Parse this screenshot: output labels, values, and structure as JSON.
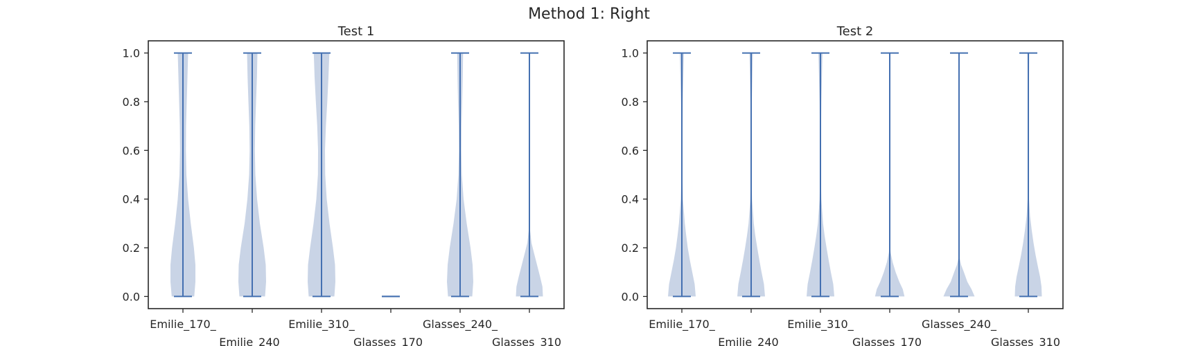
{
  "figure": {
    "title": "Method 1: Right"
  },
  "colors": {
    "violin_fill": "#c9d4e6",
    "violin_edge": "#4470b1"
  },
  "chart_data": [
    {
      "type": "violin",
      "title": "Test 1",
      "xlabel": "",
      "ylabel": "",
      "ylim": [
        -0.05,
        1.05
      ],
      "yticks": [
        0.0,
        0.2,
        0.4,
        0.6,
        0.8,
        1.0
      ],
      "ytick_labels": [
        "0.0",
        "0.2",
        "0.4",
        "0.6",
        "0.8",
        "1.0"
      ],
      "categories": [
        "Emilie_170_",
        "Emilie_240_",
        "Emilie_310_",
        "Glasses_170_",
        "Glasses_240_",
        "Glasses_310_"
      ],
      "series": [
        {
          "category": "Emilie_170_",
          "min": 0.0,
          "max": 1.0,
          "density": [
            [
              0.0,
              0.65
            ],
            [
              0.06,
              0.72
            ],
            [
              0.13,
              0.72
            ],
            [
              0.2,
              0.63
            ],
            [
              0.3,
              0.45
            ],
            [
              0.4,
              0.3
            ],
            [
              0.5,
              0.2
            ],
            [
              0.6,
              0.17
            ],
            [
              0.7,
              0.18
            ],
            [
              0.8,
              0.22
            ],
            [
              0.9,
              0.26
            ],
            [
              1.0,
              0.3
            ]
          ]
        },
        {
          "category": "Emilie_240_",
          "min": 0.0,
          "max": 1.0,
          "density": [
            [
              0.0,
              0.74
            ],
            [
              0.06,
              0.8
            ],
            [
              0.13,
              0.78
            ],
            [
              0.2,
              0.66
            ],
            [
              0.3,
              0.44
            ],
            [
              0.4,
              0.28
            ],
            [
              0.5,
              0.18
            ],
            [
              0.6,
              0.15
            ],
            [
              0.7,
              0.17
            ],
            [
              0.8,
              0.22
            ],
            [
              0.9,
              0.27
            ],
            [
              1.0,
              0.3
            ]
          ]
        },
        {
          "category": "Emilie_310_",
          "min": 0.0,
          "max": 1.0,
          "density": [
            [
              0.0,
              0.74
            ],
            [
              0.06,
              0.8
            ],
            [
              0.13,
              0.78
            ],
            [
              0.2,
              0.66
            ],
            [
              0.3,
              0.46
            ],
            [
              0.4,
              0.3
            ],
            [
              0.5,
              0.21
            ],
            [
              0.6,
              0.2
            ],
            [
              0.7,
              0.25
            ],
            [
              0.8,
              0.33
            ],
            [
              0.9,
              0.4
            ],
            [
              1.0,
              0.45
            ]
          ]
        },
        {
          "category": "Glasses_170_",
          "min": 0.0,
          "max": 0.0,
          "density": []
        },
        {
          "category": "Glasses_240_",
          "min": 0.0,
          "max": 1.0,
          "density": [
            [
              0.0,
              0.7
            ],
            [
              0.06,
              0.76
            ],
            [
              0.13,
              0.72
            ],
            [
              0.2,
              0.6
            ],
            [
              0.3,
              0.38
            ],
            [
              0.4,
              0.2
            ],
            [
              0.5,
              0.1
            ],
            [
              0.6,
              0.07
            ],
            [
              0.7,
              0.08
            ],
            [
              0.8,
              0.12
            ],
            [
              0.9,
              0.15
            ],
            [
              1.0,
              0.17
            ]
          ]
        },
        {
          "category": "Glasses_310_",
          "min": 0.0,
          "max": 1.0,
          "density": [
            [
              0.0,
              0.78
            ],
            [
              0.04,
              0.75
            ],
            [
              0.08,
              0.62
            ],
            [
              0.13,
              0.44
            ],
            [
              0.18,
              0.26
            ],
            [
              0.22,
              0.12
            ],
            [
              0.27,
              0.04
            ],
            [
              0.32,
              0.0
            ]
          ]
        }
      ]
    },
    {
      "type": "violin",
      "title": "Test 2",
      "xlabel": "",
      "ylabel": "",
      "ylim": [
        -0.05,
        1.05
      ],
      "yticks": [
        0.0,
        0.2,
        0.4,
        0.6,
        0.8,
        1.0
      ],
      "ytick_labels": [
        "0.0",
        "0.2",
        "0.4",
        "0.6",
        "0.8",
        "1.0"
      ],
      "categories": [
        "Emilie_170_",
        "Emilie_240_",
        "Emilie_310_",
        "Glasses_170_",
        "Glasses_240_",
        "Glasses_310_"
      ],
      "series": [
        {
          "category": "Emilie_170_",
          "min": 0.0,
          "max": 1.0,
          "density": [
            [
              0.0,
              0.8
            ],
            [
              0.05,
              0.74
            ],
            [
              0.1,
              0.6
            ],
            [
              0.15,
              0.46
            ],
            [
              0.2,
              0.34
            ],
            [
              0.25,
              0.25
            ],
            [
              0.3,
              0.17
            ],
            [
              0.4,
              0.06
            ],
            [
              0.5,
              0.03
            ],
            [
              0.6,
              0.03
            ],
            [
              0.8,
              0.05
            ],
            [
              1.0,
              0.12
            ]
          ]
        },
        {
          "category": "Emilie_240_",
          "min": 0.0,
          "max": 1.0,
          "density": [
            [
              0.0,
              0.8
            ],
            [
              0.05,
              0.74
            ],
            [
              0.1,
              0.6
            ],
            [
              0.15,
              0.47
            ],
            [
              0.2,
              0.35
            ],
            [
              0.25,
              0.24
            ],
            [
              0.3,
              0.15
            ],
            [
              0.4,
              0.05
            ],
            [
              0.5,
              0.02
            ],
            [
              0.6,
              0.02
            ],
            [
              0.8,
              0.04
            ],
            [
              1.0,
              0.1
            ]
          ]
        },
        {
          "category": "Emilie_310_",
          "min": 0.0,
          "max": 1.0,
          "density": [
            [
              0.0,
              0.8
            ],
            [
              0.05,
              0.74
            ],
            [
              0.1,
              0.6
            ],
            [
              0.15,
              0.47
            ],
            [
              0.2,
              0.35
            ],
            [
              0.25,
              0.24
            ],
            [
              0.3,
              0.15
            ],
            [
              0.4,
              0.05
            ],
            [
              0.5,
              0.02
            ],
            [
              0.6,
              0.02
            ],
            [
              0.8,
              0.05
            ],
            [
              1.0,
              0.12
            ]
          ]
        },
        {
          "category": "Glasses_170_",
          "min": 0.0,
          "max": 1.0,
          "density": [
            [
              0.0,
              0.85
            ],
            [
              0.03,
              0.75
            ],
            [
              0.06,
              0.55
            ],
            [
              0.1,
              0.34
            ],
            [
              0.14,
              0.17
            ],
            [
              0.18,
              0.05
            ],
            [
              0.22,
              0.0
            ]
          ]
        },
        {
          "category": "Glasses_240_",
          "min": 0.0,
          "max": 1.0,
          "density": [
            [
              0.0,
              0.9
            ],
            [
              0.03,
              0.72
            ],
            [
              0.06,
              0.48
            ],
            [
              0.1,
              0.28
            ],
            [
              0.13,
              0.12
            ],
            [
              0.16,
              0.03
            ],
            [
              0.2,
              0.0
            ]
          ]
        },
        {
          "category": "Glasses_310_",
          "min": 0.0,
          "max": 1.0,
          "density": [
            [
              0.0,
              0.78
            ],
            [
              0.04,
              0.76
            ],
            [
              0.08,
              0.68
            ],
            [
              0.12,
              0.56
            ],
            [
              0.17,
              0.42
            ],
            [
              0.22,
              0.3
            ],
            [
              0.27,
              0.2
            ],
            [
              0.33,
              0.1
            ],
            [
              0.4,
              0.04
            ],
            [
              0.5,
              0.02
            ],
            [
              0.7,
              0.02
            ],
            [
              1.0,
              0.05
            ]
          ]
        }
      ]
    }
  ]
}
